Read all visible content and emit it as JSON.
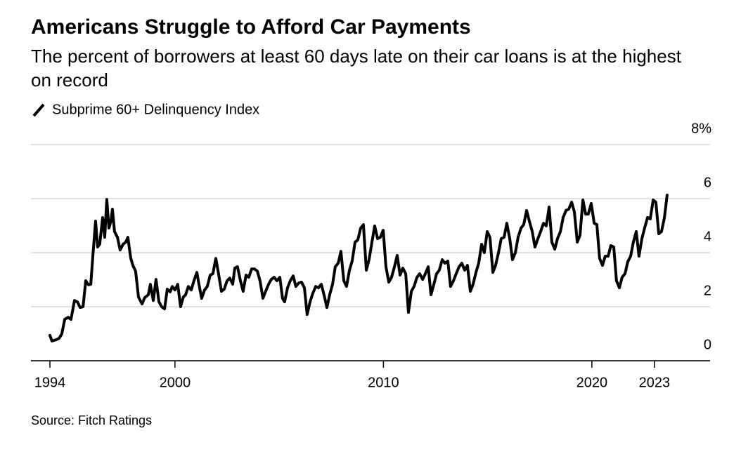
{
  "chart_data": {
    "type": "line",
    "title": "Americans Struggle to Afford Car Payments",
    "subtitle": "The percent of borrowers at least 60 days late on their car loans is at the highest on record",
    "source": "Source: Fitch Ratings",
    "grid": true,
    "xlim": [
      1993.09,
      2025.67
    ],
    "xticks": [
      1994,
      2000,
      2010,
      2020,
      2023
    ],
    "ylim": [
      0,
      8
    ],
    "yticks": [
      0,
      2,
      4,
      6,
      {
        "value": 8,
        "label": "8%"
      }
    ],
    "x": [
      1994.0,
      1994.1,
      1994.3,
      1994.44,
      1994.57,
      1994.71,
      1994.88,
      1995.01,
      1995.18,
      1995.32,
      1995.45,
      1995.59,
      1995.72,
      1995.85,
      1995.96,
      1996.06,
      1996.19,
      1996.29,
      1996.39,
      1996.53,
      1996.63,
      1996.73,
      1996.83,
      1996.93,
      1997.0,
      1997.1,
      1997.24,
      1997.37,
      1997.51,
      1997.64,
      1997.74,
      1997.88,
      1997.98,
      1998.11,
      1998.25,
      1998.42,
      1998.55,
      1998.72,
      1998.82,
      1998.96,
      1999.09,
      1999.23,
      1999.36,
      1999.5,
      1999.63,
      1999.77,
      1999.87,
      2000.0,
      2000.13,
      2000.27,
      2000.4,
      2000.51,
      2000.64,
      2000.78,
      2000.91,
      2001.05,
      2001.15,
      2001.28,
      2001.42,
      2001.55,
      2001.69,
      2001.82,
      2001.96,
      2002.09,
      2002.23,
      2002.36,
      2002.5,
      2002.63,
      2002.77,
      2002.87,
      2003.0,
      2003.14,
      2003.27,
      2003.41,
      2003.54,
      2003.68,
      2003.81,
      2003.95,
      2004.08,
      2004.22,
      2004.35,
      2004.49,
      2004.62,
      2004.76,
      2004.89,
      2005.03,
      2005.16,
      2005.26,
      2005.4,
      2005.53,
      2005.67,
      2005.8,
      2005.94,
      2006.07,
      2006.21,
      2006.34,
      2006.48,
      2006.61,
      2006.75,
      2006.88,
      2007.02,
      2007.15,
      2007.29,
      2007.42,
      2007.56,
      2007.69,
      2007.83,
      2007.96,
      2008.1,
      2008.23,
      2008.37,
      2008.5,
      2008.64,
      2008.77,
      2008.91,
      2009.04,
      2009.18,
      2009.31,
      2009.45,
      2009.58,
      2009.72,
      2009.85,
      2009.99,
      2010.12,
      2010.26,
      2010.39,
      2010.53,
      2010.66,
      2010.8,
      2010.93,
      2011.07,
      2011.2,
      2011.34,
      2011.47,
      2011.61,
      2011.74,
      2011.88,
      2012.01,
      2012.15,
      2012.28,
      2012.42,
      2012.55,
      2012.68,
      2012.82,
      2012.95,
      2013.09,
      2013.22,
      2013.36,
      2013.49,
      2013.63,
      2013.76,
      2013.9,
      2014.03,
      2014.17,
      2014.3,
      2014.44,
      2014.57,
      2014.71,
      2014.84,
      2014.98,
      2015.11,
      2015.25,
      2015.38,
      2015.52,
      2015.65,
      2015.79,
      2015.92,
      2016.06,
      2016.19,
      2016.33,
      2016.46,
      2016.6,
      2016.73,
      2016.87,
      2017.0,
      2017.14,
      2017.27,
      2017.41,
      2017.54,
      2017.68,
      2017.81,
      2017.95,
      2018.08,
      2018.22,
      2018.35,
      2018.49,
      2018.62,
      2018.76,
      2018.89,
      2019.03,
      2019.16,
      2019.3,
      2019.43,
      2019.57,
      2019.7,
      2019.83,
      2019.97,
      2020.11,
      2020.24,
      2020.37,
      2020.51,
      2020.64,
      2020.78,
      2020.91,
      2021.05,
      2021.18,
      2021.32,
      2021.45,
      2021.59,
      2021.72,
      2021.86,
      2021.99,
      2022.13,
      2022.26,
      2022.4,
      2022.53,
      2022.67,
      2022.8,
      2022.94,
      2023.07,
      2023.21,
      2023.34,
      2023.48,
      2023.61
    ],
    "series": [
      {
        "name": "Subprime 60+ Delinquency Index",
        "color": "#000000",
        "values": [
          0.94,
          0.73,
          0.78,
          0.83,
          0.99,
          1.53,
          1.61,
          1.53,
          2.23,
          2.18,
          1.97,
          2.0,
          2.96,
          2.81,
          2.83,
          3.87,
          5.17,
          4.21,
          4.31,
          5.3,
          4.57,
          5.97,
          4.91,
          5.17,
          5.61,
          4.78,
          4.57,
          4.1,
          4.31,
          4.39,
          4.57,
          3.79,
          3.53,
          3.32,
          2.36,
          2.1,
          2.34,
          2.44,
          2.83,
          2.23,
          3.01,
          2.18,
          2.0,
          1.92,
          2.65,
          2.55,
          2.75,
          2.62,
          2.83,
          2.0,
          2.36,
          2.44,
          2.75,
          2.62,
          2.96,
          3.27,
          2.83,
          2.31,
          2.62,
          2.75,
          3.17,
          3.22,
          3.79,
          3.22,
          2.57,
          2.65,
          2.96,
          3.06,
          2.83,
          3.43,
          3.48,
          2.96,
          2.57,
          3.17,
          3.09,
          3.4,
          3.4,
          3.32,
          2.96,
          2.31,
          2.57,
          2.83,
          3.01,
          3.09,
          2.96,
          3.09,
          2.31,
          2.18,
          2.7,
          2.96,
          3.14,
          2.75,
          2.88,
          2.91,
          2.7,
          1.71,
          2.18,
          2.49,
          2.75,
          2.7,
          2.83,
          2.44,
          1.97,
          2.44,
          2.83,
          3.48,
          3.61,
          4.05,
          2.96,
          2.75,
          3.35,
          3.69,
          4.39,
          4.47,
          4.91,
          5.04,
          3.35,
          3.74,
          4.39,
          4.99,
          4.52,
          4.57,
          4.83,
          3.48,
          2.91,
          3.09,
          3.48,
          3.9,
          3.17,
          3.43,
          3.22,
          1.79,
          2.57,
          2.75,
          3.09,
          3.22,
          3.01,
          3.22,
          3.48,
          2.44,
          2.83,
          3.22,
          3.35,
          3.74,
          3.61,
          3.69,
          2.75,
          2.96,
          3.22,
          3.48,
          3.61,
          3.35,
          3.53,
          2.57,
          2.83,
          3.27,
          3.61,
          4.31,
          4.0,
          4.78,
          4.57,
          3.27,
          3.53,
          4.0,
          4.52,
          4.57,
          5.09,
          4.52,
          3.74,
          4.0,
          4.57,
          4.91,
          5.04,
          5.56,
          5.17,
          4.78,
          4.21,
          4.52,
          4.78,
          5.09,
          4.99,
          5.69,
          4.39,
          4.13,
          4.52,
          4.78,
          5.3,
          5.56,
          5.61,
          5.87,
          5.51,
          4.39,
          4.65,
          5.95,
          5.43,
          5.43,
          5.82,
          5.09,
          5.04,
          3.79,
          3.53,
          3.87,
          3.87,
          4.26,
          4.21,
          2.96,
          2.7,
          3.09,
          3.22,
          3.66,
          3.87,
          4.39,
          4.78,
          3.87,
          4.52,
          4.91,
          5.3,
          5.25,
          5.95,
          5.87,
          4.7,
          4.78,
          5.3,
          6.13
        ]
      }
    ]
  }
}
